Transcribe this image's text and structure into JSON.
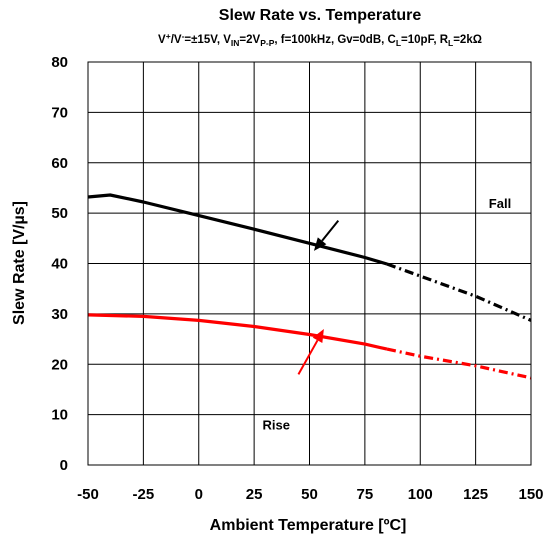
{
  "chart_data": {
    "type": "line",
    "title": "Slew Rate vs. Temperature",
    "subtitle": {
      "parts": [
        {
          "t": "V",
          "s": "n"
        },
        {
          "t": "+",
          "s": "sup"
        },
        {
          "t": "/V",
          "s": "n"
        },
        {
          "t": "-",
          "s": "sup"
        },
        {
          "t": "=±15V, V",
          "s": "n"
        },
        {
          "t": "IN",
          "s": "sub"
        },
        {
          "t": "=2V",
          "s": "n"
        },
        {
          "t": "P-P",
          "s": "sub"
        },
        {
          "t": ", f=100kHz, Gv=0dB, C",
          "s": "n"
        },
        {
          "t": "L",
          "s": "sub"
        },
        {
          "t": "=10pF, R",
          "s": "n"
        },
        {
          "t": "L",
          "s": "sub"
        },
        {
          "t": "=2kΩ",
          "s": "n"
        }
      ]
    },
    "xlabel": "Ambient Temperature [ºC]",
    "ylabel": "Slew Rate [V/µs]",
    "xlim": [
      -50,
      150
    ],
    "ylim": [
      0,
      80
    ],
    "xticks": [
      "-50",
      "-25",
      "0",
      "25",
      "50",
      "75",
      "100",
      "125",
      "150"
    ],
    "yticks": [
      "0",
      "10",
      "20",
      "30",
      "40",
      "50",
      "60",
      "70",
      "80"
    ],
    "grid": true,
    "series": [
      {
        "name": "Fall",
        "color": "#000000",
        "solid": [
          [
            -50,
            53.2
          ],
          [
            -40,
            53.6
          ],
          [
            -25,
            52.2
          ],
          [
            0,
            49.5
          ],
          [
            25,
            46.8
          ],
          [
            50,
            44.0
          ],
          [
            75,
            41.2
          ],
          [
            85,
            39.9
          ]
        ],
        "dashed": [
          [
            85,
            39.9
          ],
          [
            100,
            37.5
          ],
          [
            125,
            33.5
          ],
          [
            150,
            28.7
          ]
        ]
      },
      {
        "name": "Rise",
        "color": "#ff0000",
        "solid": [
          [
            -50,
            29.8
          ],
          [
            -25,
            29.5
          ],
          [
            0,
            28.7
          ],
          [
            25,
            27.5
          ],
          [
            50,
            25.9
          ],
          [
            75,
            24.0
          ],
          [
            85,
            23.0
          ]
        ],
        "dashed": [
          [
            85,
            23.0
          ],
          [
            100,
            21.6
          ],
          [
            125,
            19.7
          ],
          [
            150,
            17.3
          ]
        ]
      }
    ],
    "annotations": [
      {
        "text": "Fall",
        "color": "#000000",
        "label_at": [
          136,
          51.0
        ],
        "arrow_from": [
          63,
          48.5
        ],
        "arrow_to": [
          52,
          42.5
        ]
      },
      {
        "text": "Rise",
        "color": "#ff0000",
        "label_at": [
          35,
          7.0
        ],
        "arrow_from": [
          45,
          18.0
        ],
        "arrow_to": [
          56.5,
          27.0
        ]
      }
    ]
  }
}
